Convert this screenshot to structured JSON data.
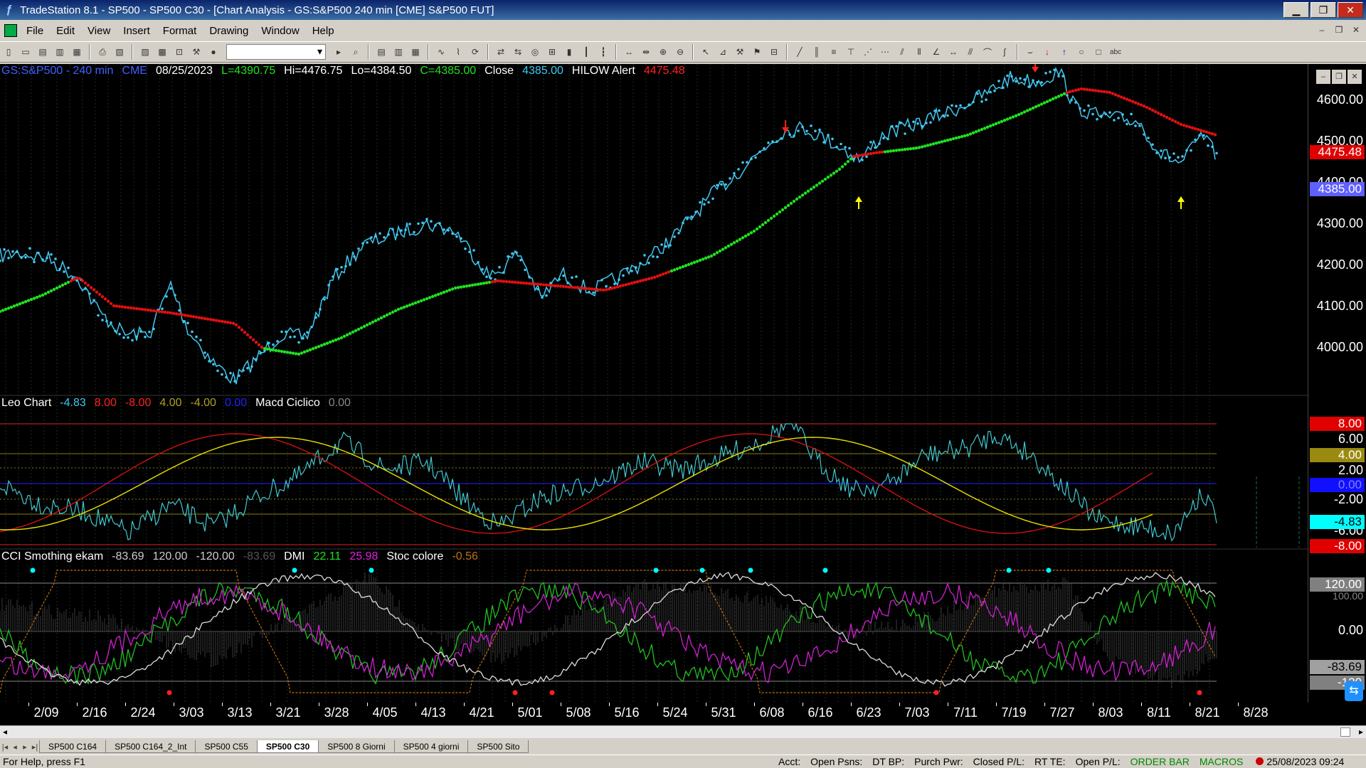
{
  "window": {
    "title": "TradeStation 8.1 - SP500 - SP500 C30 - [Chart Analysis - GS:S&P500  240 min  [CME] S&P500 FUT]",
    "icon": "tradestation-logo-icon",
    "controls": [
      "minimize-icon",
      "restore-icon",
      "close-icon"
    ]
  },
  "menu": [
    "File",
    "Edit",
    "View",
    "Insert",
    "Format",
    "Drawing",
    "Window",
    "Help"
  ],
  "toolbar": {
    "symbol_value": ""
  },
  "chart": {
    "header1": {
      "symbol": "GS:S&P500 - 240 min",
      "exchange": "CME",
      "date": "08/25/2023",
      "low_open": "L=4390.75",
      "hi": "Hi=4476.75",
      "lo": "Lo=4384.50",
      "close_c": "C=4385.00",
      "close_label": "Close",
      "close_value": "4385.00",
      "alert_label": "HILOW Alert",
      "alert_value": "4475.48"
    },
    "header2": {
      "name": "Leo Chart",
      "v1": "-4.83",
      "v2": "8.00",
      "v3": "-8.00",
      "v4": "4.00",
      "v5": "-4.00",
      "v6": "0.00",
      "name2": "Macd Ciclico",
      "v7": "0.00"
    },
    "header3": {
      "name": "CCI Smothing ekam",
      "v1": "-83.69",
      "v2": "120.00",
      "v3": "-120.00",
      "v4": "-83.69",
      "name2": "DMI",
      "v5": "22.11",
      "v6": "25.98",
      "name3": "Stoc colore",
      "v7": "-0.56"
    },
    "price_axis": [
      "4600.00",
      "4500.00",
      "4400.00",
      "4300.00",
      "4200.00",
      "4100.00",
      "4000.00"
    ],
    "price_badges": {
      "alert": "4475.48",
      "last": "4385.00"
    },
    "leo_axis": [
      "8.00",
      "6.00",
      "4.00",
      "2.00",
      "0.00",
      "-2.00",
      "-4.83",
      "-6.00",
      "-8.00"
    ],
    "cci_axis": [
      "120.00",
      "100.00",
      "0.00",
      "-83.69",
      "-120"
    ],
    "date_axis": [
      "2/09",
      "2/16",
      "2/24",
      "3/03",
      "3/13",
      "3/21",
      "3/28",
      "4/05",
      "4/13",
      "4/21",
      "5/01",
      "5/08",
      "5/16",
      "5/24",
      "5/31",
      "6/08",
      "6/16",
      "6/23",
      "7/03",
      "7/11",
      "7/19",
      "7/27",
      "8/03",
      "8/11",
      "8/21",
      "8/28"
    ],
    "colors": {
      "price": "#40c8f0",
      "trend_up": "#20e020",
      "trend_down": "#e01010",
      "signal_red": "#ff2020",
      "signal_yellow": "#ffff00",
      "macd": "#d01010",
      "signal_line": "#e8e000",
      "dmi_plus": "#20c020",
      "dmi_minus": "#d020d0",
      "stoc": "#c07010"
    }
  },
  "tabs": [
    "SP500 C164",
    "SP500 C164_2_Int",
    "SP500 C55",
    "SP500 C30",
    "SP500 8 Giorni",
    "SP500 4 giorni",
    "SP500 Sito"
  ],
  "active_tab": "SP500 C30",
  "status": {
    "help": "For Help, press F1",
    "acct": "Acct:",
    "open_psns": "Open Psns:",
    "dt_bp": "DT BP:",
    "purch_pwr": "Purch Pwr:",
    "closed_pl": "Closed P/L:",
    "rt_te": "RT TE:",
    "open_pl": "Open P/L:",
    "order_bar": "ORDER BAR",
    "macros": "MACROS",
    "datetime": "25/08/2023 09:24"
  }
}
